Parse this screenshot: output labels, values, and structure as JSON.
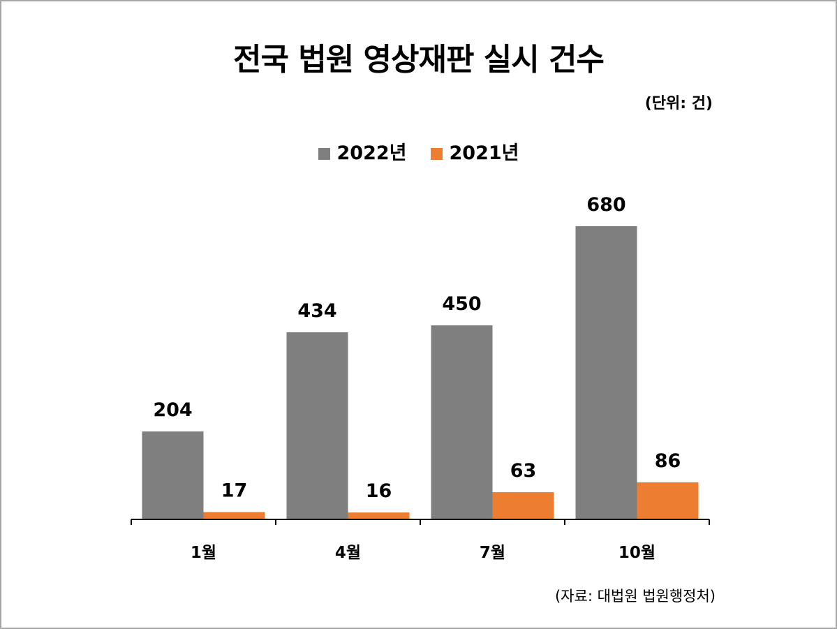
{
  "header": {
    "title": "전국 법원 영상재판 실시 건수",
    "unit": "(단위:  건)"
  },
  "footer": {
    "source": "(자료: 대법원 법원행정처)"
  },
  "colors": {
    "series_2022": "#7f7f7f",
    "series_2021": "#ed7d31",
    "axis": "#000000",
    "frame": "#a6a6a6"
  },
  "chart_data": {
    "type": "bar",
    "title": "전국 법원 영상재판 실시 건수",
    "ylabel": "",
    "xlabel": "",
    "categories": [
      "1월",
      "4월",
      "7월",
      "10월"
    ],
    "series": [
      {
        "name": "2022년",
        "values": [
          204,
          434,
          450,
          680
        ],
        "color": "#7f7f7f"
      },
      {
        "name": "2021년",
        "values": [
          17,
          16,
          63,
          86
        ],
        "color": "#ed7d31"
      }
    ],
    "ylim": [
      0,
      680
    ],
    "grid": false,
    "legend": "top-center",
    "data_labels": true
  }
}
